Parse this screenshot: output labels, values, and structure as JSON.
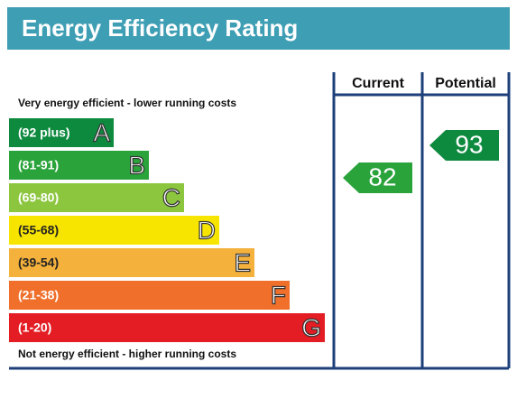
{
  "header": {
    "title": "Energy Efficiency Rating"
  },
  "columns": {
    "current": "Current",
    "potential": "Potential"
  },
  "top_note": "Very energy efficient - lower running costs",
  "bottom_note": "Not energy efficient - higher running costs",
  "bands": [
    {
      "range": "(92 plus)",
      "letter": "A"
    },
    {
      "range": "(81-91)",
      "letter": "B"
    },
    {
      "range": "(69-80)",
      "letter": "C"
    },
    {
      "range": "(55-68)",
      "letter": "D"
    },
    {
      "range": "(39-54)",
      "letter": "E"
    },
    {
      "range": "(21-38)",
      "letter": "F"
    },
    {
      "range": "(1-20)",
      "letter": "G"
    }
  ],
  "current": {
    "value": 82
  },
  "potential": {
    "value": 93
  }
}
